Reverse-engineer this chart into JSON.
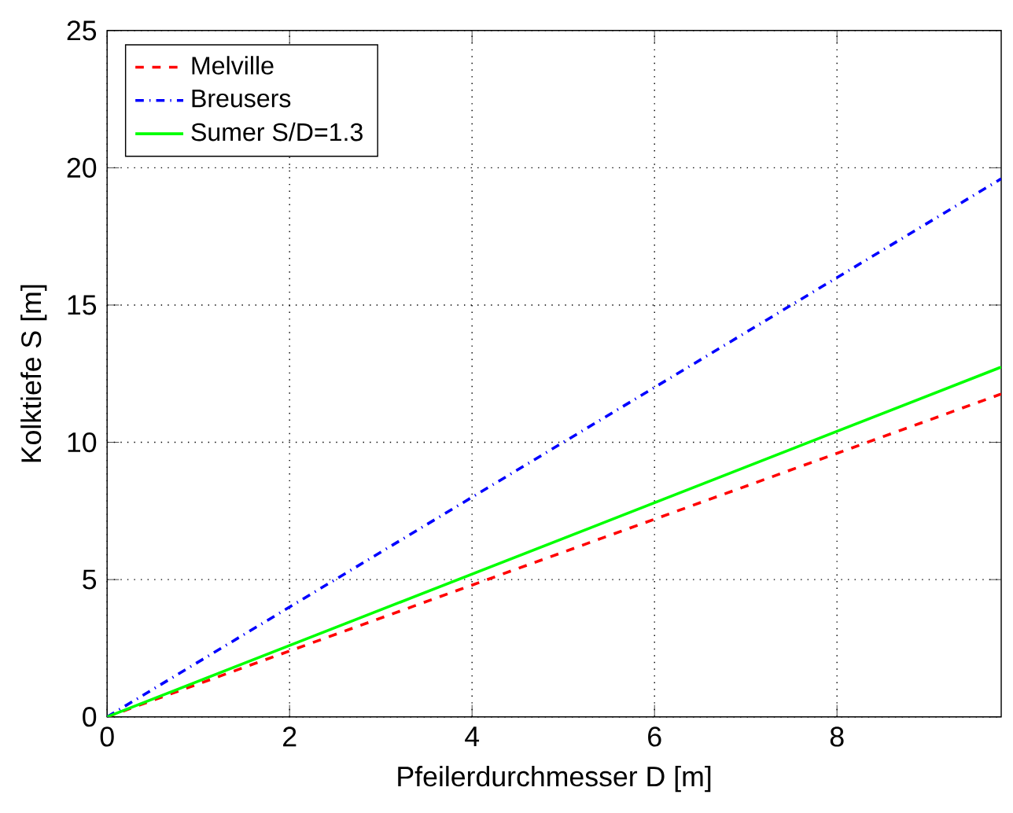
{
  "chart_data": {
    "type": "line",
    "xlabel": "Pfeilerdurchmesser D [m]",
    "ylabel": "Kolktiefe S [m]",
    "x": [
      0,
      9.8
    ],
    "series": [
      {
        "name": "Melville",
        "color": "#ff0000",
        "line_style": "dashed",
        "values": [
          0,
          11.76
        ]
      },
      {
        "name": "Breusers",
        "color": "#0000ff",
        "line_style": "dashdot",
        "values": [
          0,
          19.6
        ]
      },
      {
        "name": "Sumer S/D=1.3",
        "color": "#00ff00",
        "line_style": "solid",
        "values": [
          0,
          12.74
        ]
      }
    ],
    "xlim": [
      0,
      9.8
    ],
    "ylim": [
      0,
      25
    ],
    "xticks": [
      0,
      2,
      4,
      6,
      8
    ],
    "yticks": [
      0,
      5,
      10,
      15,
      20,
      25
    ],
    "grid": true,
    "legend": "top left"
  }
}
